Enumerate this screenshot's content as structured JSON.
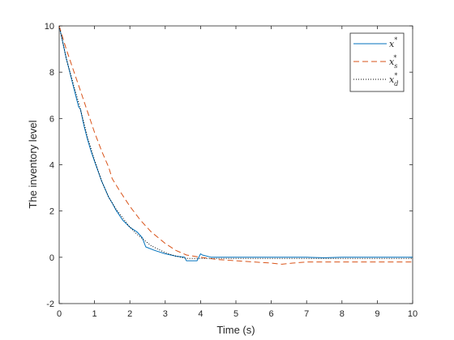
{
  "chart_data": {
    "type": "line",
    "title": "",
    "xlabel": "Time (s)",
    "ylabel": "The inventory level",
    "xlim": [
      0,
      10
    ],
    "ylim": [
      -2,
      10
    ],
    "xticks": [
      "0",
      "1",
      "2",
      "3",
      "4",
      "5",
      "6",
      "7",
      "8",
      "9",
      "10"
    ],
    "yticks": [
      "-2",
      "0",
      "2",
      "4",
      "6",
      "8",
      "10"
    ],
    "grid": false,
    "legend_placement": "top-right",
    "series": [
      {
        "name": "x*",
        "label": {
          "base": "x",
          "sup": "*",
          "sub": ""
        },
        "color": "#0072BD",
        "style": "solid",
        "x": [
          0,
          0.1,
          0.2,
          0.3,
          0.4,
          0.5,
          0.55,
          0.6,
          0.7,
          0.8,
          0.9,
          1.0,
          1.2,
          1.4,
          1.5,
          1.6,
          1.8,
          2.0,
          2.2,
          2.35,
          2.4,
          2.45,
          2.7,
          3.0,
          3.3,
          3.55,
          3.6,
          3.9,
          3.95,
          4.0,
          4.05,
          4.3,
          5.0,
          6.0,
          7.0,
          7.5,
          8.0,
          9.0,
          10.0
        ],
        "y": [
          10.0,
          9.3,
          8.6,
          8.0,
          7.4,
          6.8,
          6.5,
          6.4,
          5.7,
          5.1,
          4.6,
          4.15,
          3.3,
          2.6,
          2.35,
          2.05,
          1.6,
          1.3,
          1.1,
          0.85,
          0.65,
          0.45,
          0.3,
          0.15,
          0.05,
          0.0,
          -0.15,
          -0.15,
          0.0,
          0.15,
          0.1,
          0.0,
          0.0,
          0.0,
          0.0,
          -0.02,
          0.0,
          0.0,
          0.0
        ]
      },
      {
        "name": "xs*",
        "label": {
          "base": "x",
          "sup": "*",
          "sub": "s"
        },
        "color": "#D95319",
        "style": "dashed",
        "x": [
          0,
          0.2,
          0.4,
          0.6,
          0.8,
          1.0,
          1.2,
          1.4,
          1.5,
          1.7,
          2.0,
          2.3,
          2.6,
          3.0,
          3.3,
          3.6,
          4.0,
          4.5,
          5.0,
          5.5,
          6.0,
          6.3,
          6.6,
          7.0,
          8.0,
          9.0,
          10.0
        ],
        "y": [
          10.0,
          9.0,
          8.1,
          7.2,
          6.3,
          5.4,
          4.6,
          3.9,
          3.4,
          2.9,
          2.2,
          1.6,
          1.1,
          0.6,
          0.3,
          0.1,
          0.0,
          -0.1,
          -0.15,
          -0.2,
          -0.25,
          -0.3,
          -0.25,
          -0.2,
          -0.2,
          -0.2,
          -0.2
        ]
      },
      {
        "name": "xd*",
        "label": {
          "base": "x",
          "sup": "*",
          "sub": "d"
        },
        "color": "#000000",
        "style": "dotted",
        "x": [
          0,
          0.2,
          0.4,
          0.6,
          0.8,
          1.0,
          1.2,
          1.4,
          1.6,
          1.8,
          2.0,
          2.2,
          2.4,
          2.6,
          2.8,
          3.0,
          3.3,
          3.6,
          4.0,
          4.5,
          5.0,
          6.0,
          7.0,
          8.0,
          9.0,
          10.0
        ],
        "y": [
          10.0,
          8.6,
          7.5,
          6.4,
          5.2,
          4.2,
          3.3,
          2.6,
          2.1,
          1.7,
          1.3,
          1.0,
          0.75,
          0.5,
          0.35,
          0.2,
          0.05,
          -0.05,
          -0.05,
          -0.05,
          -0.05,
          -0.05,
          -0.05,
          -0.05,
          -0.05,
          -0.05
        ]
      }
    ]
  }
}
